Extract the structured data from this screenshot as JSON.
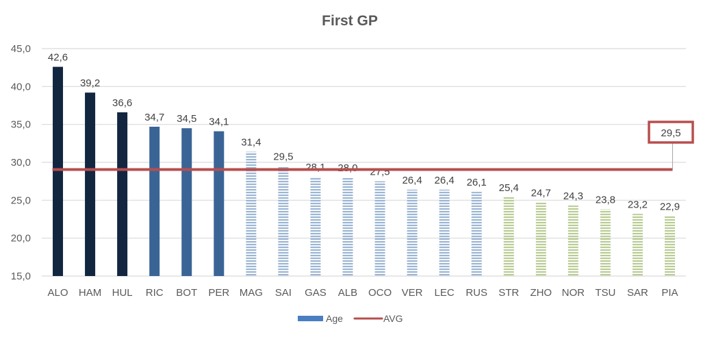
{
  "chart_data": {
    "type": "bar",
    "title": "First GP",
    "xlabel": "",
    "ylabel": "",
    "ylim": [
      15,
      45
    ],
    "yticks": [
      "15,0",
      "20,0",
      "25,0",
      "30,0",
      "35,0",
      "40,0",
      "45,0"
    ],
    "ytick_values": [
      15,
      20,
      25,
      30,
      35,
      40,
      45
    ],
    "grid": true,
    "legend_position": "bottom",
    "categories": [
      "ALO",
      "HAM",
      "HUL",
      "RIC",
      "BOT",
      "PER",
      "MAG",
      "SAI",
      "GAS",
      "ALB",
      "OCO",
      "VER",
      "LEC",
      "RUS",
      "STR",
      "ZHO",
      "NOR",
      "TSU",
      "SAR",
      "PIA"
    ],
    "series": [
      {
        "name": "Age",
        "kind": "bar",
        "values": [
          42.6,
          39.2,
          36.6,
          34.7,
          34.5,
          34.1,
          31.4,
          29.5,
          28.1,
          28.0,
          27.5,
          26.4,
          26.4,
          26.1,
          25.4,
          24.7,
          24.3,
          23.8,
          23.2,
          22.9
        ],
        "labels": [
          "42,6",
          "39,2",
          "36,6",
          "34,7",
          "34,5",
          "34,1",
          "31,4",
          "29,5",
          "28,1",
          "28,0",
          "27,5",
          "26,4",
          "26,4",
          "26,1",
          "25,4",
          "24,7",
          "24,3",
          "23,8",
          "23,2",
          "22,9"
        ],
        "groups": [
          "veteran",
          "veteran",
          "veteran",
          "senior",
          "senior",
          "senior",
          "mid",
          "mid",
          "mid",
          "mid",
          "mid",
          "mid",
          "mid",
          "mid",
          "young",
          "young",
          "young",
          "young",
          "young",
          "young"
        ]
      },
      {
        "name": "AVG",
        "kind": "line",
        "value": 29.5,
        "label": "29,5"
      }
    ],
    "group_colors": {
      "veteran": "#132640",
      "senior": "#3B6496",
      "mid": "#9BB5D3",
      "young": "#B9CC93"
    },
    "avg_color": "#B84E4E",
    "legend_age_color": "#4A7EC0"
  }
}
